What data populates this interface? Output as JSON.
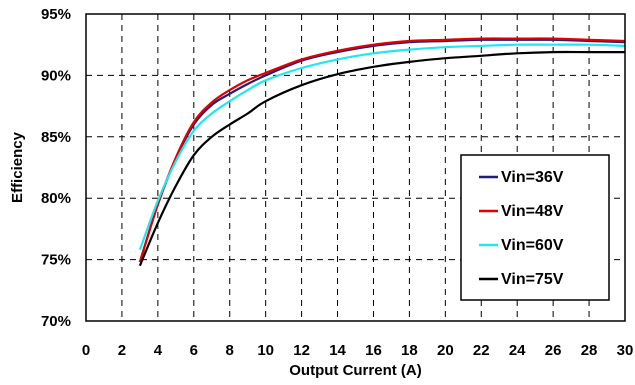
{
  "chart_data": {
    "type": "line",
    "title": "",
    "xlabel": "Output Current (A)",
    "ylabel": "Efficiency",
    "xlim": [
      0,
      30
    ],
    "ylim": [
      70,
      95
    ],
    "x_ticks": [
      0,
      2,
      4,
      6,
      8,
      10,
      12,
      14,
      16,
      18,
      20,
      22,
      24,
      26,
      28,
      30
    ],
    "x_tick_labels": [
      "0",
      "2",
      "4",
      "6",
      "8",
      "10",
      "12",
      "14",
      "16",
      "18",
      "20",
      "22",
      "24",
      "26",
      "28",
      "30"
    ],
    "y_ticks": [
      70,
      75,
      80,
      85,
      90,
      95
    ],
    "y_tick_labels": [
      "70%",
      "75%",
      "80%",
      "85%",
      "90%",
      "95%"
    ],
    "grid": true,
    "legend_position": "bottom-right",
    "series": [
      {
        "name": "Vin=36V",
        "color": "#1f1f7a",
        "points": [
          [
            3,
            74.8
          ],
          [
            4,
            79.5
          ],
          [
            5,
            83.2
          ],
          [
            6,
            86.0
          ],
          [
            7,
            87.6
          ],
          [
            8,
            88.5
          ],
          [
            9,
            89.3
          ],
          [
            10,
            90.0
          ],
          [
            12,
            91.2
          ],
          [
            14,
            91.9
          ],
          [
            16,
            92.4
          ],
          [
            18,
            92.7
          ],
          [
            20,
            92.8
          ],
          [
            22,
            92.9
          ],
          [
            24,
            92.9
          ],
          [
            26,
            92.9
          ],
          [
            28,
            92.8
          ],
          [
            30,
            92.7
          ]
        ]
      },
      {
        "name": "Vin=48V",
        "color": "#e00000",
        "points": [
          [
            3,
            74.8
          ],
          [
            4,
            79.5
          ],
          [
            5,
            83.3
          ],
          [
            6,
            86.2
          ],
          [
            7,
            87.8
          ],
          [
            8,
            88.8
          ],
          [
            9,
            89.6
          ],
          [
            10,
            90.2
          ],
          [
            12,
            91.3
          ],
          [
            14,
            92.0
          ],
          [
            16,
            92.5
          ],
          [
            18,
            92.8
          ],
          [
            20,
            92.9
          ],
          [
            22,
            93.0
          ],
          [
            24,
            93.0
          ],
          [
            26,
            93.0
          ],
          [
            28,
            92.9
          ],
          [
            30,
            92.8
          ]
        ]
      },
      {
        "name": "Vin=60V",
        "color": "#22e6f2",
        "points": [
          [
            3,
            75.8
          ],
          [
            4,
            79.8
          ],
          [
            5,
            83.0
          ],
          [
            6,
            85.5
          ],
          [
            7,
            86.9
          ],
          [
            8,
            87.9
          ],
          [
            9,
            88.8
          ],
          [
            10,
            89.6
          ],
          [
            12,
            90.6
          ],
          [
            14,
            91.3
          ],
          [
            16,
            91.8
          ],
          [
            18,
            92.1
          ],
          [
            20,
            92.3
          ],
          [
            22,
            92.4
          ],
          [
            24,
            92.5
          ],
          [
            26,
            92.5
          ],
          [
            28,
            92.5
          ],
          [
            30,
            92.4
          ]
        ]
      },
      {
        "name": "Vin=75V",
        "color": "#000000",
        "points": [
          [
            3,
            74.5
          ],
          [
            4,
            78.0
          ],
          [
            5,
            81.0
          ],
          [
            6,
            83.5
          ],
          [
            7,
            85.0
          ],
          [
            8,
            86.0
          ],
          [
            9,
            86.9
          ],
          [
            10,
            87.9
          ],
          [
            12,
            89.2
          ],
          [
            14,
            90.1
          ],
          [
            16,
            90.7
          ],
          [
            18,
            91.1
          ],
          [
            20,
            91.4
          ],
          [
            22,
            91.6
          ],
          [
            24,
            91.8
          ],
          [
            26,
            91.9
          ],
          [
            28,
            91.9
          ],
          [
            30,
            91.9
          ]
        ]
      }
    ]
  }
}
